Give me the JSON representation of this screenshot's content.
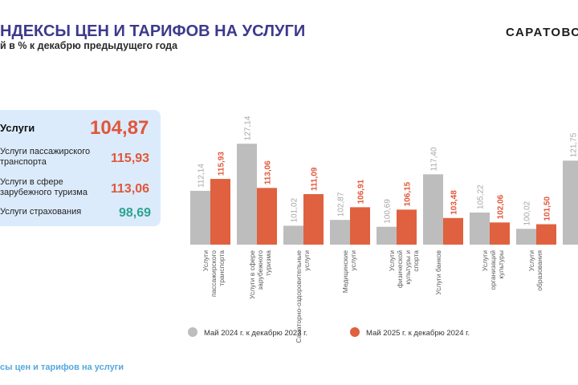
{
  "header": {
    "title": "НДЕКСЫ ЦЕН И ТАРИФОВ НА УСЛУГИ",
    "subtitle": "й в % к декабрю предыдущего года",
    "brand": "САРАТОВС"
  },
  "summary": {
    "items": [
      {
        "label": "Услуги",
        "value": "104,87",
        "color": "#e0573a"
      },
      {
        "label": "Услуги пассажирского транспорта",
        "value": "115,93",
        "color": "#e0573a"
      },
      {
        "label": "Услуги в сфере зарубежного туризма",
        "value": "113,06",
        "color": "#e0573a"
      },
      {
        "label": "Услуги страхования",
        "value": "98,69",
        "color": "#2aa58f"
      }
    ]
  },
  "chart_data": {
    "type": "bar",
    "categories": [
      "Услуги пассажирского транспорта",
      "Услуги в сфере зарубежного туризма",
      "Санаторно-оздоровительные услуги",
      "Медицинские услуги",
      "Услуги физической культуры и спорта",
      "Услуги банков",
      "Услуги организаций культуры",
      "Услуги образования",
      ""
    ],
    "series": [
      {
        "name": "Май 2024 г. к декабрю 2023 г.",
        "color": "#bdbdbd",
        "values": [
          112.14,
          127.14,
          101.02,
          102.87,
          100.69,
          117.4,
          105.22,
          100.02,
          121.75
        ],
        "labels": [
          "112,14",
          "127,14",
          "101,02",
          "102,87",
          "100,69",
          "117,40",
          "105,22",
          "100,02",
          "121,75"
        ]
      },
      {
        "name": "Май 2025 г. к декабрю 2024 г.",
        "color": "#e0613f",
        "values": [
          115.93,
          113.06,
          111.09,
          106.91,
          106.15,
          103.48,
          102.06,
          101.5,
          null
        ],
        "labels": [
          "115,93",
          "113,06",
          "111,09",
          "106,91",
          "106,15",
          "103,48",
          "102,06",
          "101,50",
          ""
        ]
      }
    ],
    "legend": "bottom"
  },
  "footer": {
    "text": "сы цен и тарифов на услуги"
  }
}
